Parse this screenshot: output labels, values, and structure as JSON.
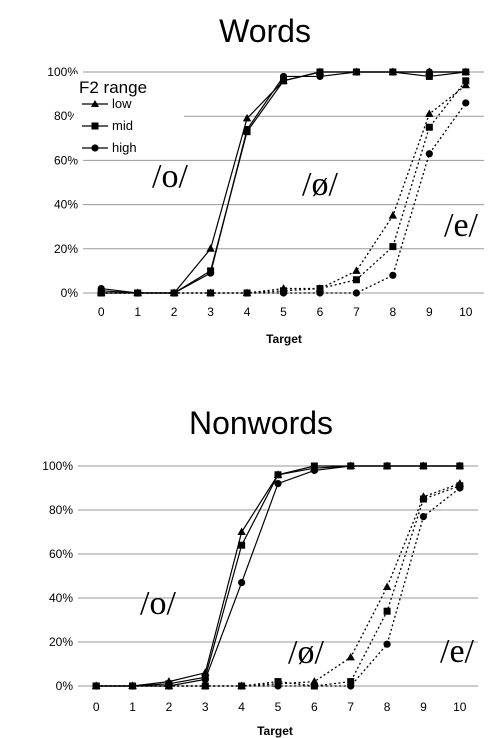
{
  "chart_data": [
    {
      "type": "line",
      "title": "Words",
      "xlabel": "Target",
      "ylabel": "",
      "x": [
        0,
        1,
        2,
        3,
        4,
        5,
        6,
        7,
        8,
        9,
        10
      ],
      "ylim": [
        0,
        100
      ],
      "yticks": [
        "0%",
        "20%",
        "40%",
        "60%",
        "80%",
        "100%"
      ],
      "grid": true,
      "legend": {
        "title": "F2 range",
        "placement": "top-left",
        "entries": [
          "low",
          "mid",
          "high"
        ]
      },
      "annotations": [
        "/o/",
        "/ø/",
        "/e/"
      ],
      "series": [
        {
          "name": "low",
          "marker": "triangle",
          "response": "/o/",
          "style": "solid",
          "values": [
            1,
            0,
            0,
            20,
            79,
            96,
            100,
            100,
            100,
            100,
            100
          ]
        },
        {
          "name": "mid",
          "marker": "square",
          "response": "/o/",
          "style": "solid",
          "values": [
            0,
            0,
            0,
            10,
            73,
            96,
            100,
            100,
            100,
            98,
            100
          ]
        },
        {
          "name": "high",
          "marker": "circle",
          "response": "/o/",
          "style": "solid",
          "values": [
            2,
            0,
            0,
            9,
            74,
            98,
            98,
            100,
            100,
            100,
            100
          ]
        },
        {
          "name": "low",
          "marker": "triangle",
          "response": "/e/",
          "style": "dotted",
          "values": [
            0,
            0,
            0,
            0,
            0,
            2,
            2,
            10,
            35,
            81,
            94
          ]
        },
        {
          "name": "mid",
          "marker": "square",
          "response": "/e/",
          "style": "dotted",
          "values": [
            0,
            0,
            0,
            0,
            0,
            1,
            2,
            6,
            21,
            75,
            96
          ]
        },
        {
          "name": "high",
          "marker": "circle",
          "response": "/e/",
          "style": "dotted",
          "values": [
            0,
            0,
            0,
            0,
            0,
            0,
            0,
            0,
            8,
            63,
            86
          ]
        }
      ]
    },
    {
      "type": "line",
      "title": "Nonwords",
      "xlabel": "Target",
      "ylabel": "",
      "x": [
        0,
        1,
        2,
        3,
        4,
        5,
        6,
        7,
        8,
        9,
        10
      ],
      "ylim": [
        0,
        100
      ],
      "yticks": [
        "0%",
        "20%",
        "40%",
        "60%",
        "80%",
        "100%"
      ],
      "grid": true,
      "annotations": [
        "/o/",
        "/ø/",
        "/e/"
      ],
      "series": [
        {
          "name": "low",
          "marker": "triangle",
          "response": "/o/",
          "style": "solid",
          "values": [
            0,
            0,
            2,
            6,
            70,
            96,
            99,
            100,
            100,
            100,
            100
          ]
        },
        {
          "name": "mid",
          "marker": "square",
          "response": "/o/",
          "style": "solid",
          "values": [
            0,
            0,
            1,
            4,
            64,
            96,
            100,
            100,
            100,
            100,
            100
          ]
        },
        {
          "name": "high",
          "marker": "circle",
          "response": "/o/",
          "style": "solid",
          "values": [
            0,
            0,
            0,
            3,
            47,
            92,
            98,
            100,
            100,
            100,
            100
          ]
        },
        {
          "name": "low",
          "marker": "triangle",
          "response": "/e/",
          "style": "dotted",
          "values": [
            0,
            0,
            0,
            0,
            0,
            1,
            2,
            13,
            45,
            86,
            92
          ]
        },
        {
          "name": "mid",
          "marker": "square",
          "response": "/e/",
          "style": "dotted",
          "values": [
            0,
            0,
            0,
            0,
            0,
            2,
            0,
            2,
            34,
            85,
            91
          ]
        },
        {
          "name": "high",
          "marker": "circle",
          "response": "/e/",
          "style": "dotted",
          "values": [
            0,
            0,
            0,
            0,
            0,
            0,
            0,
            0,
            19,
            77,
            90
          ]
        }
      ]
    }
  ]
}
